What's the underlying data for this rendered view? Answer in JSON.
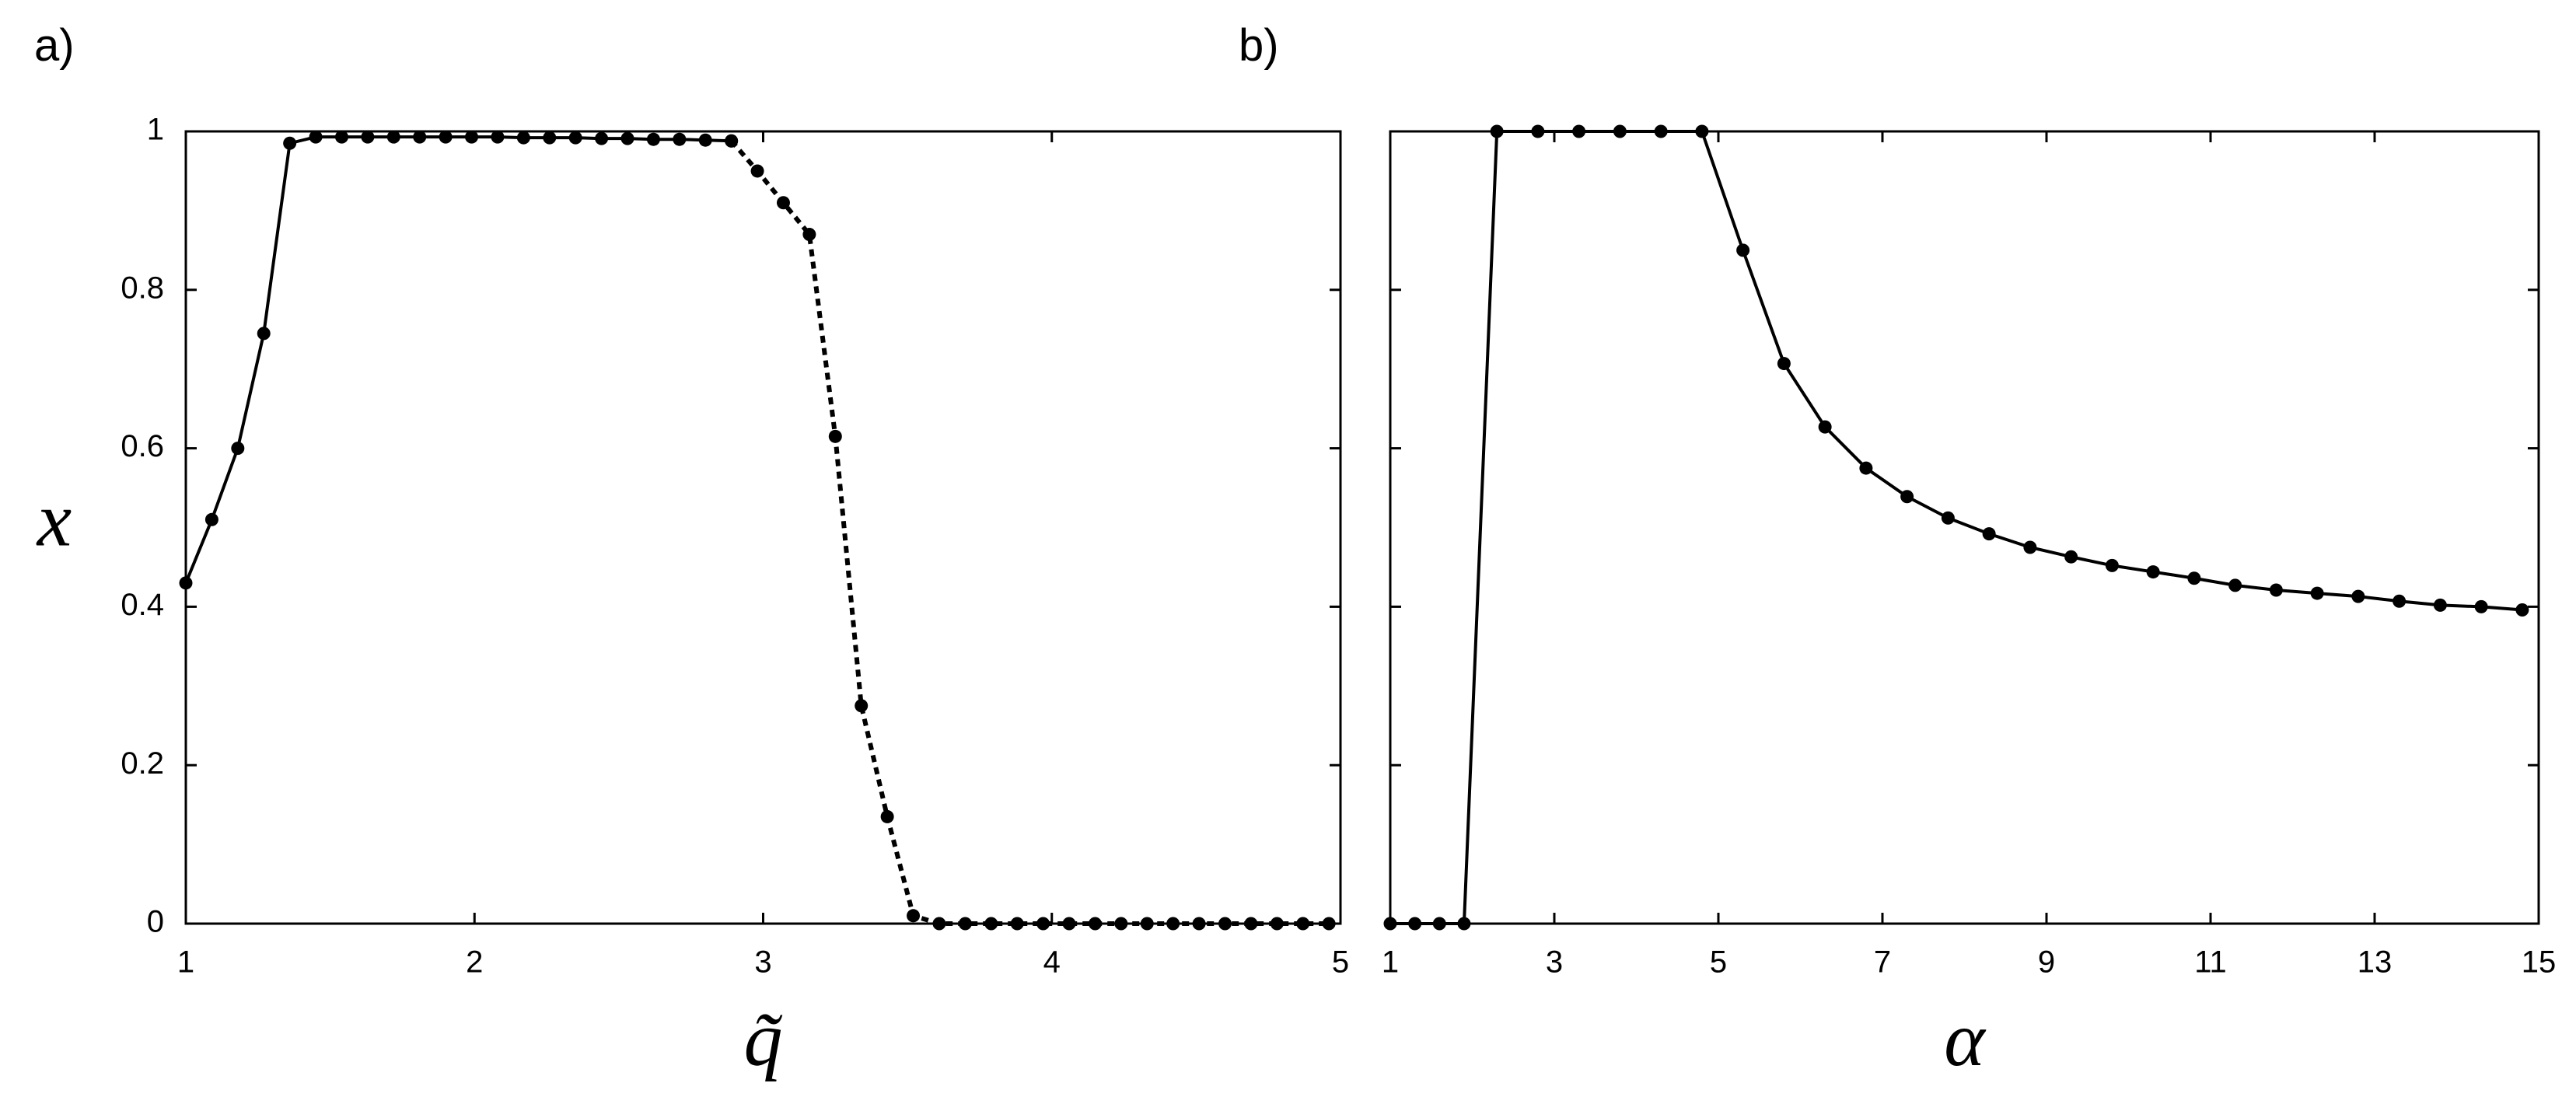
{
  "chart_data": [
    {
      "type": "line",
      "label": "a)",
      "xlabel": "q̃",
      "ylabel": "x",
      "x": [
        1,
        1.09,
        1.18,
        1.27,
        1.36,
        1.45,
        1.54,
        1.63,
        1.72,
        1.81,
        1.9,
        1.99,
        2.08,
        2.17,
        2.26,
        2.35,
        2.44,
        2.53,
        2.62,
        2.71,
        2.8,
        2.89,
        2.98,
        3.07,
        3.16,
        3.25,
        3.34,
        3.43,
        3.52,
        3.61,
        3.7,
        3.79,
        3.88,
        3.97,
        4.06,
        4.15,
        4.24,
        4.33,
        4.42,
        4.51,
        4.6,
        4.69,
        4.78,
        4.87,
        4.96
      ],
      "series": [
        {
          "color": "#000000",
          "linestyle": "solid",
          "values": [
            0.43,
            0.51,
            0.6,
            0.745,
            0.985,
            0.993,
            0.993,
            0.993,
            0.993,
            0.993,
            0.993,
            0.993,
            0.993,
            0.992,
            0.992,
            0.992,
            0.991,
            0.991,
            0.99,
            0.99,
            0.989,
            0.988,
            null,
            null,
            null,
            null,
            null,
            null,
            null,
            null,
            null,
            null,
            null,
            null,
            null,
            null,
            null,
            null,
            null,
            null,
            null,
            null,
            null,
            null,
            null
          ]
        },
        {
          "color": "#000000",
          "linestyle": "dotted",
          "values": [
            null,
            null,
            null,
            null,
            null,
            null,
            null,
            null,
            null,
            null,
            null,
            null,
            null,
            null,
            null,
            null,
            null,
            null,
            null,
            null,
            null,
            0.988,
            0.95,
            0.91,
            0.87,
            0.615,
            0.275,
            0.135,
            0.01,
            0,
            0,
            0,
            0,
            0,
            0,
            0,
            0,
            0,
            0,
            0,
            0,
            0,
            0,
            0,
            0
          ]
        }
      ],
      "xlim": [
        1,
        5
      ],
      "ylim": [
        0,
        1
      ],
      "xticks": [
        1,
        2,
        3,
        4,
        5
      ],
      "yticks": [
        0,
        0.2,
        0.4,
        0.6,
        0.8,
        1
      ],
      "ytick_labels": true
    },
    {
      "type": "line",
      "label": "b)",
      "xlabel": "α",
      "x": [
        1,
        1.3,
        1.6,
        1.9,
        2.3,
        2.8,
        3.3,
        3.8,
        4.3,
        4.8,
        5.3,
        5.8,
        6.3,
        6.8,
        7.3,
        7.8,
        8.3,
        8.8,
        9.3,
        9.8,
        10.3,
        10.8,
        11.3,
        11.8,
        12.3,
        12.8,
        13.3,
        13.8,
        14.3,
        14.8
      ],
      "series": [
        {
          "color": "#000000",
          "linestyle": "solid",
          "values": [
            0,
            0,
            0,
            0,
            1,
            1,
            1,
            1,
            1,
            1,
            0.85,
            0.707,
            0.627,
            0.575,
            0.539,
            0.512,
            0.492,
            0.475,
            0.463,
            0.452,
            0.444,
            0.436,
            0.427,
            0.421,
            0.417,
            0.413,
            0.407,
            0.402,
            0.4,
            0.396
          ]
        }
      ],
      "xlim": [
        1,
        15
      ],
      "ylim": [
        0,
        1
      ],
      "xticks": [
        1,
        3,
        5,
        7,
        9,
        11,
        13,
        15
      ],
      "yticks": [
        0,
        0.2,
        0.4,
        0.6,
        0.8,
        1
      ],
      "ytick_labels": false
    }
  ]
}
